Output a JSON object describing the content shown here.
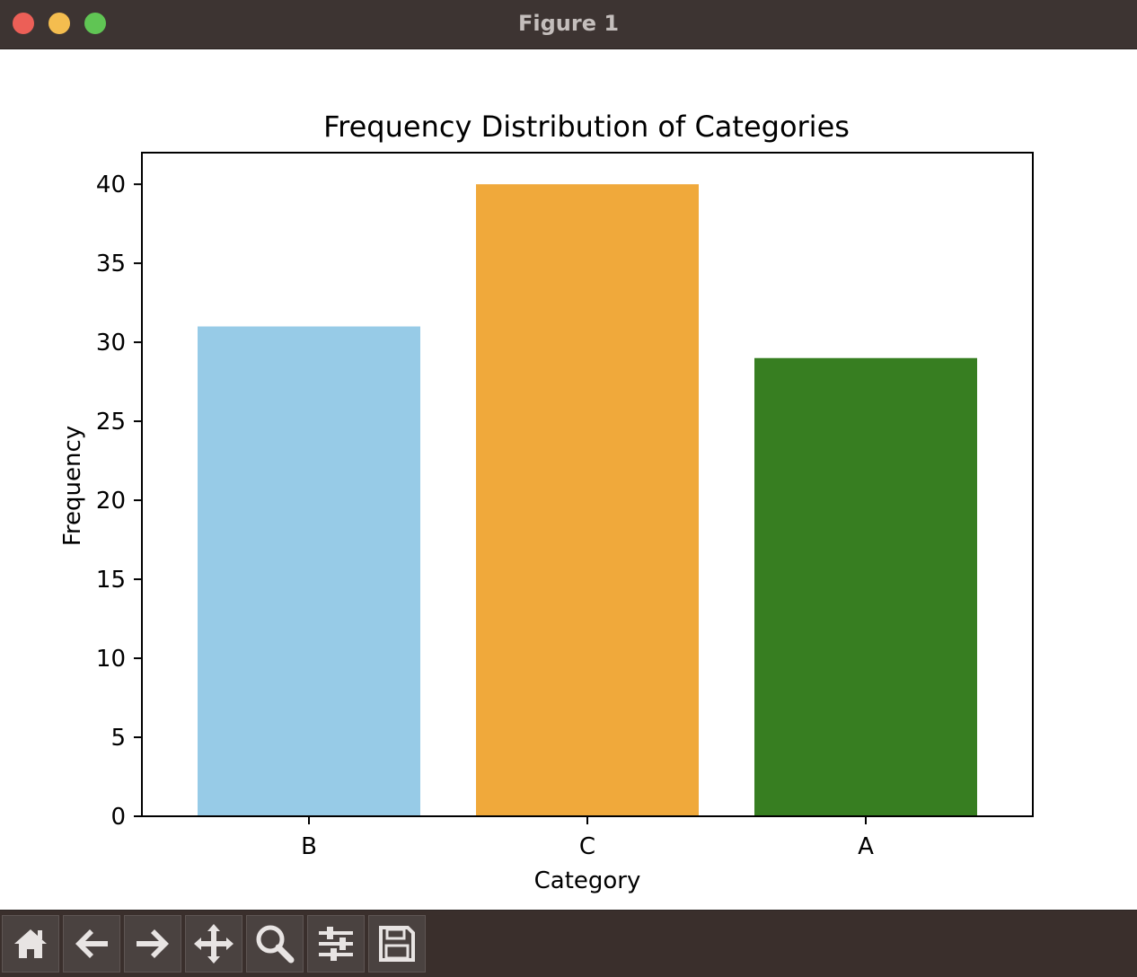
{
  "window": {
    "title": "Figure 1"
  },
  "toolbar": {
    "buttons": [
      {
        "name": "home-button",
        "icon": "home-icon"
      },
      {
        "name": "back-button",
        "icon": "arrow-left-icon"
      },
      {
        "name": "forward-button",
        "icon": "arrow-right-icon"
      },
      {
        "name": "pan-button",
        "icon": "move-icon"
      },
      {
        "name": "zoom-button",
        "icon": "magnifier-icon"
      },
      {
        "name": "configure-subplots-button",
        "icon": "sliders-icon"
      },
      {
        "name": "save-button",
        "icon": "floppy-disk-icon"
      }
    ]
  },
  "colors": {
    "titlebar": "#3d3432",
    "toolbar": "#3a2f2c",
    "bar_B": "#97cbe7",
    "bar_C": "#f0a93b",
    "bar_A": "#377e21"
  },
  "chart_data": {
    "type": "bar",
    "title": "Frequency Distribution of Categories",
    "xlabel": "Category",
    "ylabel": "Frequency",
    "categories": [
      "B",
      "C",
      "A"
    ],
    "values": [
      31,
      40,
      29
    ],
    "colors": [
      "#97cbe7",
      "#f0a93b",
      "#377e21"
    ],
    "ylim": [
      0,
      42
    ],
    "yticks": [
      0,
      5,
      10,
      15,
      20,
      25,
      30,
      35,
      40
    ],
    "grid": false,
    "legend": "none"
  }
}
